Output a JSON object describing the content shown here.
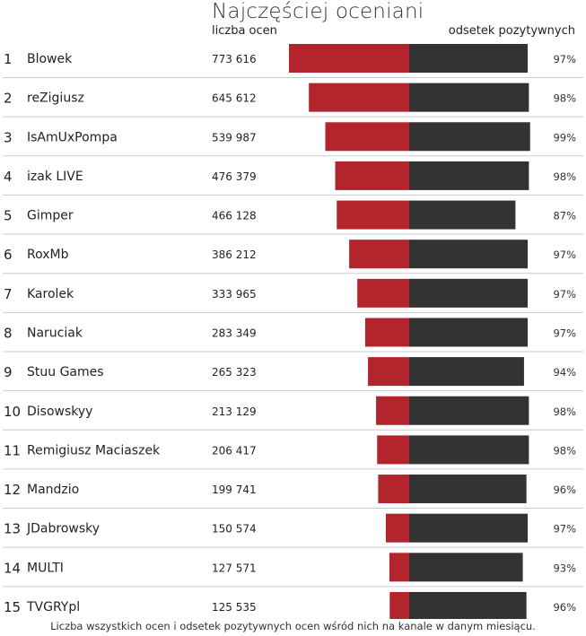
{
  "chart_data": {
    "type": "bar",
    "title": "Najczęściej oceniani",
    "left_header": "liczba ocen",
    "right_header": "odsetek pozytywnych",
    "footer": "Liczba wszystkich ocen i odsetek pozytywnych ocen wśród nich na kanale w danym miesiącu.",
    "colors": {
      "count_bar": "#b3252d",
      "percent_bar": "#333333",
      "divider": "#cccccc"
    },
    "rows": [
      {
        "rank": "1",
        "name": "Blowek",
        "count": 773616,
        "count_label": "773 616",
        "percent": 97,
        "percent_label": "97%"
      },
      {
        "rank": "2",
        "name": "reZigiusz",
        "count": 645612,
        "count_label": "645 612",
        "percent": 98,
        "percent_label": "98%"
      },
      {
        "rank": "3",
        "name": "IsAmUxPompa",
        "count": 539987,
        "count_label": "539 987",
        "percent": 99,
        "percent_label": "99%"
      },
      {
        "rank": "4",
        "name": "izak LIVE",
        "count": 476379,
        "count_label": "476 379",
        "percent": 98,
        "percent_label": "98%"
      },
      {
        "rank": "5",
        "name": "Gimper",
        "count": 466128,
        "count_label": "466 128",
        "percent": 87,
        "percent_label": "87%"
      },
      {
        "rank": "6",
        "name": "RoxMb",
        "count": 386212,
        "count_label": "386 212",
        "percent": 97,
        "percent_label": "97%"
      },
      {
        "rank": "7",
        "name": "Karolek",
        "count": 333965,
        "count_label": "333 965",
        "percent": 97,
        "percent_label": "97%"
      },
      {
        "rank": "8",
        "name": "Naruciak",
        "count": 283349,
        "count_label": "283 349",
        "percent": 97,
        "percent_label": "97%"
      },
      {
        "rank": "9",
        "name": "Stuu Games",
        "count": 265323,
        "count_label": "265 323",
        "percent": 94,
        "percent_label": "94%"
      },
      {
        "rank": "10",
        "name": "Disowskyy",
        "count": 213129,
        "count_label": "213 129",
        "percent": 98,
        "percent_label": "98%"
      },
      {
        "rank": "11",
        "name": "Remigiusz Maciaszek",
        "count": 206417,
        "count_label": "206 417",
        "percent": 98,
        "percent_label": "98%"
      },
      {
        "rank": "12",
        "name": "Mandzio",
        "count": 199741,
        "count_label": "199 741",
        "percent": 96,
        "percent_label": "96%"
      },
      {
        "rank": "13",
        "name": "JDabrowsky",
        "count": 150574,
        "count_label": "150 574",
        "percent": 97,
        "percent_label": "97%"
      },
      {
        "rank": "14",
        "name": "MULTI",
        "count": 127571,
        "count_label": "127 571",
        "percent": 93,
        "percent_label": "93%"
      },
      {
        "rank": "15",
        "name": "TVGRYpl",
        "count": 125535,
        "count_label": "125 535",
        "percent": 96,
        "percent_label": "96%"
      }
    ]
  }
}
